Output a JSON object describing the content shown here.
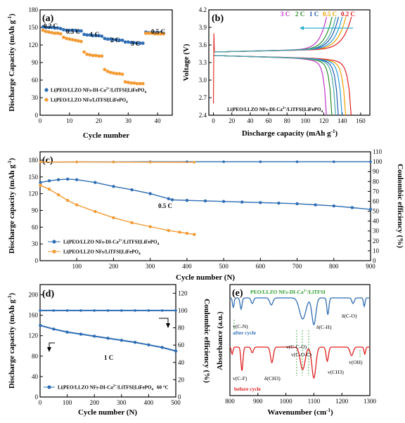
{
  "chart_data": [
    {
      "panel": "(a)",
      "type": "scatter",
      "xlabel": "Cycle number",
      "ylabel": "Discharge Capacity (mAh g-1)",
      "xlim": [
        0,
        45
      ],
      "ylim": [
        0,
        180
      ],
      "xticks": [
        "0",
        "10",
        "20",
        "30",
        "40"
      ],
      "yticks": [
        "0",
        "30",
        "60",
        "90",
        "120",
        "150",
        "180"
      ],
      "rate_labels": [
        "0.2 C",
        "0.5 C",
        "1 C",
        "2 C",
        "3 C",
        "0.5 C"
      ],
      "series": [
        {
          "name": "Li|PEO/LLZO NFs-DI-Ca2+/LiTFSI|LiFePO4",
          "color": "#2e6db4",
          "x": [
            1,
            2,
            3,
            4,
            5,
            6,
            7,
            8,
            9,
            10,
            11,
            12,
            13,
            14,
            15,
            16,
            17,
            18,
            19,
            20,
            21,
            22,
            23,
            24,
            25,
            26,
            27,
            28,
            29,
            30,
            31,
            32,
            33,
            34,
            35,
            36,
            37,
            38,
            39,
            40,
            41,
            42
          ],
          "y": [
            151,
            150,
            150,
            150,
            149,
            149,
            148,
            146,
            145,
            145,
            145,
            145,
            144,
            144,
            138,
            137,
            137,
            136,
            136,
            136,
            135,
            131,
            130,
            130,
            129,
            129,
            128,
            128,
            125,
            125,
            124,
            124,
            123,
            123,
            123,
            142,
            141,
            141,
            141,
            141,
            141,
            140
          ]
        },
        {
          "name": "Li|PEO/LLZO NFs/LiTFSI|LiFePO4",
          "color": "#f39a33",
          "x": [
            1,
            2,
            3,
            4,
            5,
            6,
            7,
            8,
            9,
            10,
            11,
            12,
            13,
            14,
            15,
            16,
            17,
            18,
            19,
            20,
            21,
            22,
            23,
            24,
            25,
            26,
            27,
            28,
            29,
            30,
            31,
            32,
            33,
            34,
            35,
            36,
            37,
            38,
            39,
            40,
            41,
            42
          ],
          "y": [
            145,
            143,
            142,
            141,
            140,
            140,
            139,
            133,
            131,
            130,
            129,
            128,
            127,
            126,
            108,
            104,
            103,
            102,
            102,
            101,
            101,
            78,
            75,
            73,
            72,
            71,
            71,
            70,
            57,
            56,
            55,
            55,
            54,
            54,
            54,
            140,
            140,
            140,
            139,
            139,
            139,
            139
          ]
        }
      ]
    },
    {
      "panel": "(b)",
      "type": "line",
      "xlabel": "Discharge capacity (mAh g-1)",
      "ylabel": "Voltage (V)",
      "xlim": [
        -5,
        170
      ],
      "ylim": [
        2.4,
        4.2
      ],
      "xticks": [
        "0",
        "20",
        "40",
        "60",
        "80",
        "100",
        "120",
        "140",
        "160"
      ],
      "yticks": [
        "2.4",
        "2.7",
        "3.0",
        "3.3",
        "3.6",
        "3.9",
        "4.2"
      ],
      "inset_label": "Li|PEO/LLZO NFs-DI-Ca2+/LiTFSI|LiFePO4",
      "series": [
        {
          "name": "3 C",
          "color": "#c036c8",
          "capacity": 123
        },
        {
          "name": "2 C",
          "color": "#2c8c2c",
          "capacity": 129
        },
        {
          "name": "1 C",
          "color": "#1f5ab4",
          "capacity": 136
        },
        {
          "name": "0.5 C",
          "color": "#f0a000",
          "capacity": 144
        },
        {
          "name": "0.2 C",
          "color": "#e02020",
          "capacity": 150
        }
      ],
      "extra_curves": [
        {
          "color": "#2b9ad8",
          "capacity": 140
        },
        {
          "color": "#4aa8a8",
          "capacity": 133
        }
      ]
    },
    {
      "panel": "(c)",
      "type": "scatter",
      "xlabel": "Cycle number (N)",
      "ylabel": "Discharge capacity (mAh g-1)",
      "ylabel_right": "Coulombic efficiency (%)",
      "xlim": [
        0,
        900
      ],
      "ylim": [
        0,
        195
      ],
      "ylim_right": [
        0,
        110
      ],
      "xticks": [
        "100",
        "200",
        "300",
        "400",
        "500",
        "600",
        "700",
        "800",
        "900"
      ],
      "yticks": [
        "0",
        "30",
        "60",
        "90",
        "120",
        "150",
        "180"
      ],
      "yticks_right": [
        "0",
        "10",
        "20",
        "30",
        "40",
        "50",
        "60",
        "70",
        "80",
        "90",
        "100",
        "110"
      ],
      "rate_label": "0.5 C",
      "series": [
        {
          "name": "Li|PEO/LLZO NFs-DI-Ca2+/LiTFSI|LiFePO4",
          "color": "#2e6db4",
          "x": [
            1,
            25,
            50,
            75,
            100,
            150,
            200,
            250,
            300,
            350,
            360,
            400,
            450,
            500,
            550,
            600,
            650,
            700,
            750,
            800,
            850,
            900
          ],
          "y": [
            140,
            143,
            145,
            146,
            145,
            140,
            133,
            127,
            120,
            111,
            109,
            108,
            107,
            106,
            105,
            104,
            103,
            102,
            100,
            98,
            95,
            92
          ],
          "ce_x": [
            1,
            100,
            200,
            300,
            400,
            500,
            600,
            700,
            800,
            900
          ],
          "ce_y": [
            99.5,
            99.8,
            99.8,
            99.9,
            99.9,
            99.9,
            99.9,
            99.9,
            99.9,
            99.9
          ]
        },
        {
          "name": "Li|PEO/LLZO NFs/LiTFSI|LiFePO4",
          "color": "#f39a33",
          "x": [
            1,
            25,
            50,
            75,
            100,
            150,
            200,
            250,
            300,
            350,
            380,
            400,
            420
          ],
          "y": [
            135,
            128,
            118,
            108,
            100,
            88,
            77,
            68,
            61,
            54,
            51,
            49,
            47
          ],
          "ce_x": [
            1,
            100,
            200,
            300,
            420
          ],
          "ce_y": [
            99.6,
            99.7,
            99.6,
            99.5,
            99.4
          ]
        }
      ]
    },
    {
      "panel": "(d)",
      "type": "scatter",
      "xlabel": "Cycle number (N)",
      "ylabel": "Discharge capacity (mAh g-1)",
      "ylabel_right": "Coulombic efficiency (%)",
      "xlim": [
        0,
        500
      ],
      "ylim": [
        0,
        220
      ],
      "ylim_right": [
        0,
        130
      ],
      "xticks": [
        "0",
        "100",
        "200",
        "300",
        "400",
        "500"
      ],
      "yticks": [
        "0",
        "40",
        "80",
        "120",
        "160",
        "200"
      ],
      "yticks_right": [
        "0",
        "20",
        "40",
        "60",
        "80",
        "100",
        "120"
      ],
      "rate_label": "1 C",
      "temperature": "60 °C",
      "series": [
        {
          "name": "Li|PEO/LLZO NFs-DI-Ca2+/LiTFSI|LiFePO4",
          "color": "#2e6db4",
          "x": [
            1,
            50,
            100,
            150,
            200,
            250,
            300,
            350,
            400,
            450,
            500
          ],
          "y": [
            140,
            133,
            127,
            123,
            119,
            115,
            111,
            107,
            102,
            97,
            90
          ],
          "ce_y": 100
        }
      ]
    },
    {
      "panel": "(e)",
      "type": "line",
      "title": "PEO/LLZO NFs-DI-Ca2+/LiTFSI",
      "xlabel": "Wavenumber (cm-1)",
      "ylabel": "Absorbance (a.u.)",
      "xlim": [
        800,
        1300
      ],
      "xticks": [
        "800",
        "900",
        "1000",
        "1100",
        "1200",
        "1300"
      ],
      "series": [
        {
          "name": "after cycle",
          "color": "#2e6db4"
        },
        {
          "name": "before cycle",
          "color": "#e02020"
        }
      ],
      "peak_labels": [
        "v(C-N)",
        "δ(C-H)",
        "δ(C-O)",
        "v(C-C-O)",
        "v(C-O-C)",
        "v(C-F)",
        "δ(CH3)",
        "v(CH3)",
        "v(OH)"
      ]
    }
  ]
}
